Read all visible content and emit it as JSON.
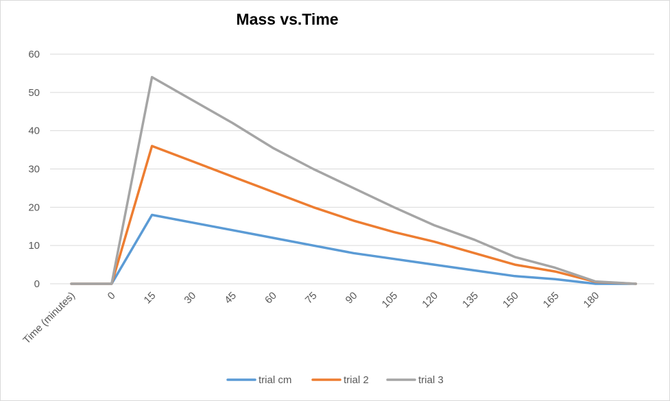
{
  "chart_data": {
    "type": "line",
    "title": "Mass vs.Time",
    "xlabel": "",
    "ylabel": "",
    "categories": [
      "Time (minutes)",
      "0",
      "15",
      "30",
      "45",
      "60",
      "75",
      "90",
      "105",
      "120",
      "135",
      "150",
      "165",
      "180",
      ""
    ],
    "ylim": [
      0,
      60
    ],
    "yticks": [
      0,
      10,
      20,
      30,
      40,
      50,
      60
    ],
    "grid": true,
    "legend_position": "bottom",
    "series": [
      {
        "name": "trial cm",
        "color": "#5b9bd5",
        "values": [
          0,
          0,
          18,
          16,
          14,
          12,
          10,
          8,
          6.5,
          5,
          3.5,
          2,
          1.2,
          0,
          0
        ]
      },
      {
        "name": "trial 2",
        "color": "#ed7d31",
        "values": [
          0,
          0,
          36,
          32,
          28,
          24,
          20,
          16.5,
          13.5,
          11,
          8,
          5,
          3.2,
          0.5,
          0
        ]
      },
      {
        "name": "trial 3",
        "color": "#a5a5a5",
        "values": [
          0,
          0,
          54,
          48,
          42,
          35.5,
          30,
          25,
          20,
          15.3,
          11.5,
          7,
          4.2,
          0.6,
          0
        ]
      }
    ]
  }
}
